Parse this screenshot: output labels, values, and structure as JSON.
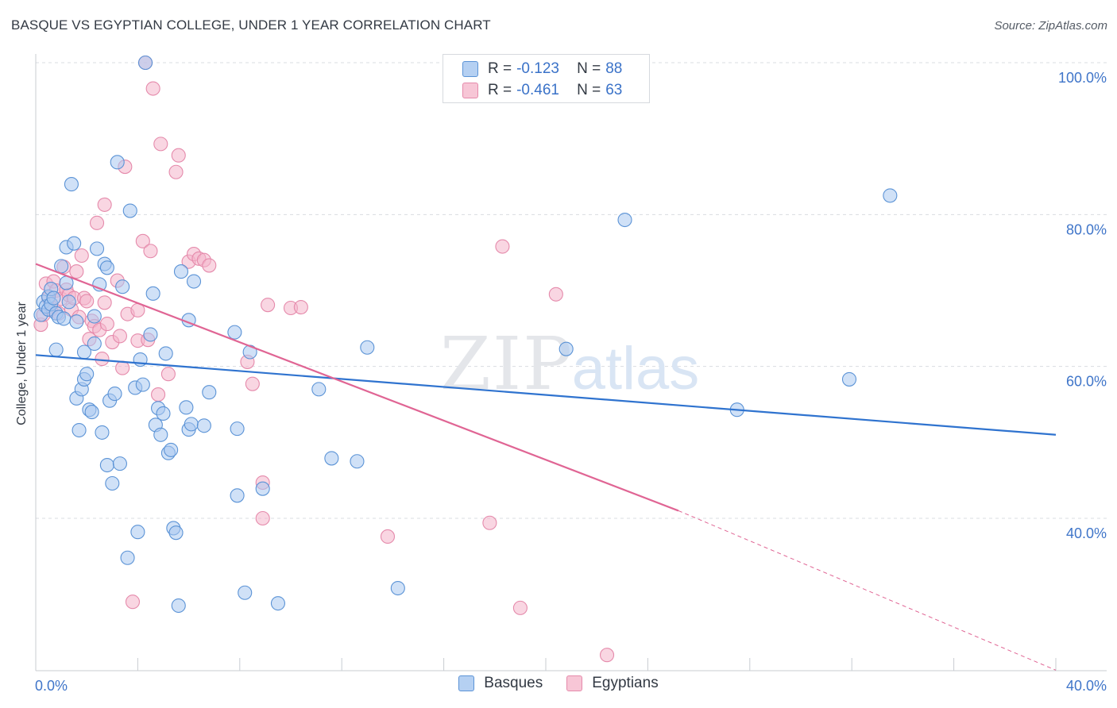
{
  "title": "BASQUE VS EGYPTIAN COLLEGE, UNDER 1 YEAR CORRELATION CHART",
  "source": "Source: ZipAtlas.com",
  "watermark": {
    "zip": "ZIP",
    "atlas": "atlas"
  },
  "colors": {
    "basques_fill": "#a9c8f0",
    "basques_stroke": "#5b93d6",
    "basques_line": "#2f73cf",
    "egyptians_fill": "#f4b5ca",
    "egyptians_stroke": "#e58aab",
    "egyptians_line": "#e06594",
    "axis_label": "#3f75c9",
    "grid": "#d9dce1"
  },
  "legend": {
    "basques": {
      "r_label": "R =",
      "r_value": "-0.123",
      "n_label": "N =",
      "n_value": "88"
    },
    "egyptians": {
      "r_label": "R =",
      "r_value": "-0.461",
      "n_label": "N =",
      "n_value": "63"
    }
  },
  "chart_data": {
    "type": "scatter",
    "title": "BASQUE VS EGYPTIAN COLLEGE, UNDER 1 YEAR CORRELATION CHART",
    "xlabel": "",
    "ylabel": "College, Under 1 year",
    "xlim": [
      0,
      40
    ],
    "ylim": [
      18,
      102
    ],
    "x_tick_labels": [
      "0.0%",
      "40.0%"
    ],
    "y_ticks": [
      40,
      60,
      80,
      100
    ],
    "y_tick_labels": [
      "40.0%",
      "60.0%",
      "80.0%",
      "100.0%"
    ],
    "legend_position": "bottom-center",
    "series": [
      {
        "name": "Basques",
        "trend": {
          "x": [
            0,
            40
          ],
          "y": [
            61.5,
            51.0
          ],
          "extrapolated_from": null
        },
        "points": [
          [
            0.2,
            66.8
          ],
          [
            0.3,
            68.5
          ],
          [
            0.4,
            67.9
          ],
          [
            0.5,
            69.2
          ],
          [
            0.5,
            67.5
          ],
          [
            0.6,
            68.2
          ],
          [
            0.6,
            70.2
          ],
          [
            0.7,
            69.0
          ],
          [
            0.8,
            62.2
          ],
          [
            0.8,
            67.0
          ],
          [
            0.9,
            66.5
          ],
          [
            1.0,
            73.2
          ],
          [
            1.1,
            66.3
          ],
          [
            1.2,
            75.7
          ],
          [
            1.2,
            71.0
          ],
          [
            1.3,
            68.5
          ],
          [
            1.4,
            84.0
          ],
          [
            1.5,
            76.2
          ],
          [
            1.6,
            65.9
          ],
          [
            1.6,
            55.8
          ],
          [
            1.7,
            51.6
          ],
          [
            1.8,
            57.0
          ],
          [
            1.9,
            58.3
          ],
          [
            1.9,
            61.9
          ],
          [
            2.0,
            59.0
          ],
          [
            2.1,
            54.3
          ],
          [
            2.2,
            54.0
          ],
          [
            2.3,
            66.6
          ],
          [
            2.3,
            63.0
          ],
          [
            2.4,
            75.5
          ],
          [
            2.5,
            70.8
          ],
          [
            2.6,
            51.3
          ],
          [
            2.7,
            73.5
          ],
          [
            2.8,
            73.0
          ],
          [
            2.8,
            47.0
          ],
          [
            2.9,
            55.5
          ],
          [
            3.0,
            44.6
          ],
          [
            3.1,
            56.4
          ],
          [
            3.2,
            86.9
          ],
          [
            3.3,
            47.2
          ],
          [
            3.4,
            70.5
          ],
          [
            3.6,
            34.8
          ],
          [
            3.7,
            80.5
          ],
          [
            3.9,
            57.2
          ],
          [
            4.0,
            38.2
          ],
          [
            4.1,
            60.9
          ],
          [
            4.2,
            57.6
          ],
          [
            4.3,
            100.0
          ],
          [
            4.5,
            64.2
          ],
          [
            4.6,
            69.6
          ],
          [
            4.7,
            52.3
          ],
          [
            4.8,
            54.5
          ],
          [
            4.9,
            51.0
          ],
          [
            5.0,
            53.8
          ],
          [
            5.1,
            61.7
          ],
          [
            5.2,
            48.6
          ],
          [
            5.3,
            49.0
          ],
          [
            5.4,
            38.7
          ],
          [
            5.5,
            38.1
          ],
          [
            5.6,
            28.5
          ],
          [
            5.7,
            72.5
          ],
          [
            5.9,
            54.6
          ],
          [
            6.0,
            51.7
          ],
          [
            6.0,
            66.1
          ],
          [
            6.1,
            52.4
          ],
          [
            6.2,
            71.2
          ],
          [
            6.6,
            52.2
          ],
          [
            6.8,
            56.6
          ],
          [
            7.8,
            64.5
          ],
          [
            7.9,
            51.8
          ],
          [
            7.9,
            43.0
          ],
          [
            8.2,
            30.2
          ],
          [
            8.4,
            61.9
          ],
          [
            8.9,
            43.9
          ],
          [
            9.5,
            28.8
          ],
          [
            11.1,
            57.0
          ],
          [
            11.6,
            47.9
          ],
          [
            12.6,
            47.5
          ],
          [
            13.0,
            62.5
          ],
          [
            14.2,
            30.8
          ],
          [
            20.8,
            62.3
          ],
          [
            23.1,
            79.3
          ],
          [
            27.5,
            54.3
          ],
          [
            31.9,
            58.3
          ],
          [
            33.5,
            82.5
          ]
        ]
      },
      {
        "name": "Egyptians",
        "trend": {
          "x": [
            0,
            25.2
          ],
          "y": [
            73.5,
            41.0
          ],
          "extrapolated_to": [
            40,
            20.0
          ]
        },
        "points": [
          [
            0.2,
            65.5
          ],
          [
            0.3,
            66.8
          ],
          [
            0.4,
            70.9
          ],
          [
            0.5,
            69.0
          ],
          [
            0.6,
            67.5
          ],
          [
            0.7,
            71.2
          ],
          [
            0.8,
            70.0
          ],
          [
            0.9,
            67.0
          ],
          [
            1.0,
            68.9
          ],
          [
            1.1,
            73.1
          ],
          [
            1.2,
            70.1
          ],
          [
            1.3,
            69.4
          ],
          [
            1.4,
            67.5
          ],
          [
            1.5,
            69.0
          ],
          [
            1.6,
            72.5
          ],
          [
            1.7,
            66.5
          ],
          [
            1.8,
            74.6
          ],
          [
            1.9,
            69.0
          ],
          [
            2.0,
            68.6
          ],
          [
            2.1,
            63.6
          ],
          [
            2.2,
            66.0
          ],
          [
            2.3,
            65.3
          ],
          [
            2.4,
            78.9
          ],
          [
            2.5,
            64.8
          ],
          [
            2.6,
            61.0
          ],
          [
            2.7,
            68.4
          ],
          [
            2.7,
            81.3
          ],
          [
            2.8,
            65.6
          ],
          [
            3.0,
            63.2
          ],
          [
            3.2,
            71.3
          ],
          [
            3.3,
            64.0
          ],
          [
            3.4,
            59.8
          ],
          [
            3.5,
            86.3
          ],
          [
            3.6,
            66.9
          ],
          [
            3.8,
            29.0
          ],
          [
            4.0,
            67.4
          ],
          [
            4.0,
            63.4
          ],
          [
            4.2,
            76.5
          ],
          [
            4.3,
            100.0
          ],
          [
            4.4,
            63.5
          ],
          [
            4.5,
            75.2
          ],
          [
            4.6,
            96.6
          ],
          [
            4.8,
            56.3
          ],
          [
            4.9,
            89.3
          ],
          [
            5.2,
            59.0
          ],
          [
            5.5,
            85.6
          ],
          [
            5.6,
            87.8
          ],
          [
            6.0,
            73.8
          ],
          [
            6.2,
            74.8
          ],
          [
            6.4,
            74.2
          ],
          [
            6.6,
            74.0
          ],
          [
            6.8,
            73.3
          ],
          [
            8.3,
            60.6
          ],
          [
            8.5,
            57.7
          ],
          [
            8.9,
            40.0
          ],
          [
            8.9,
            44.7
          ],
          [
            9.1,
            68.1
          ],
          [
            10.0,
            67.7
          ],
          [
            10.4,
            67.8
          ],
          [
            13.8,
            37.6
          ],
          [
            17.8,
            39.4
          ],
          [
            18.3,
            75.8
          ],
          [
            19.0,
            28.2
          ],
          [
            20.4,
            69.5
          ],
          [
            22.4,
            22.0
          ]
        ]
      }
    ]
  }
}
